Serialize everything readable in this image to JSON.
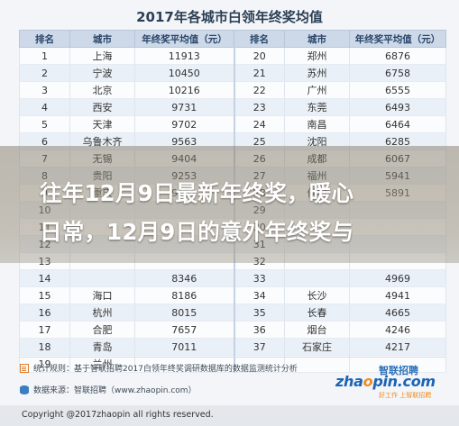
{
  "title": "2017年各城市白领年终奖均值",
  "headers": [
    "排名",
    "城市",
    "年终奖平均值（元）",
    "排名",
    "城市",
    "年终奖平均值（元）"
  ],
  "rows": [
    [
      "1",
      "上海",
      "11913",
      "20",
      "郑州",
      "6876"
    ],
    [
      "2",
      "宁波",
      "10450",
      "21",
      "苏州",
      "6758"
    ],
    [
      "3",
      "北京",
      "10216",
      "22",
      "广州",
      "6555"
    ],
    [
      "4",
      "西安",
      "9731",
      "23",
      "东莞",
      "6493"
    ],
    [
      "5",
      "天津",
      "9702",
      "24",
      "南昌",
      "6464"
    ],
    [
      "6",
      "乌鲁木齐",
      "9563",
      "25",
      "沈阳",
      "6285"
    ],
    [
      "7",
      "无锡",
      "9404",
      "26",
      "成都",
      "6067"
    ],
    [
      "8",
      "贵阳",
      "9253",
      "27",
      "福州",
      "5941"
    ],
    [
      "9",
      "重庆",
      "9151",
      "28",
      "佛山",
      "5891"
    ],
    [
      "10",
      "",
      "",
      "29",
      "",
      ""
    ],
    [
      "11",
      "",
      "",
      "30",
      "",
      ""
    ],
    [
      "12",
      "",
      "",
      "31",
      "",
      ""
    ],
    [
      "13",
      "",
      "",
      "32",
      "",
      ""
    ],
    [
      "14",
      "",
      "8346",
      "33",
      "",
      "4969"
    ],
    [
      "15",
      "海口",
      "8186",
      "34",
      "长沙",
      "4941"
    ],
    [
      "16",
      "杭州",
      "8015",
      "35",
      "长春",
      "4665"
    ],
    [
      "17",
      "合肥",
      "7657",
      "36",
      "烟台",
      "4246"
    ],
    [
      "18",
      "青岛",
      "7011",
      "37",
      "石家庄",
      "4217"
    ],
    [
      "19",
      "兰州",
      "",
      "",
      "",
      ""
    ]
  ],
  "headline": {
    "line1": "往年12月9日最新年终奖，暖心",
    "line2": "日常，12月9日的意外年终奖与"
  },
  "notes": {
    "rule": "统计规则：基于智联招聘2017白领年终奖调研数据库的数据监测统计分析",
    "source": "数据来源：智联招聘（www.zhaopin.com）"
  },
  "logo": {
    "cn": "智联招聘",
    "en_pre": "zha",
    "en_o": "o",
    "en_post": "pin.com",
    "tagline": "好工作 上智联招聘"
  },
  "copyright": "Copyright @2017zhaopin all rights reserved.",
  "icons": {
    "rule": "list-icon",
    "source": "database-icon"
  },
  "colors": {
    "header_bg": "#cdd9e8",
    "title": "#2b3f55",
    "logo_blue": "#1b63b5",
    "logo_orange": "#f08a1c"
  }
}
